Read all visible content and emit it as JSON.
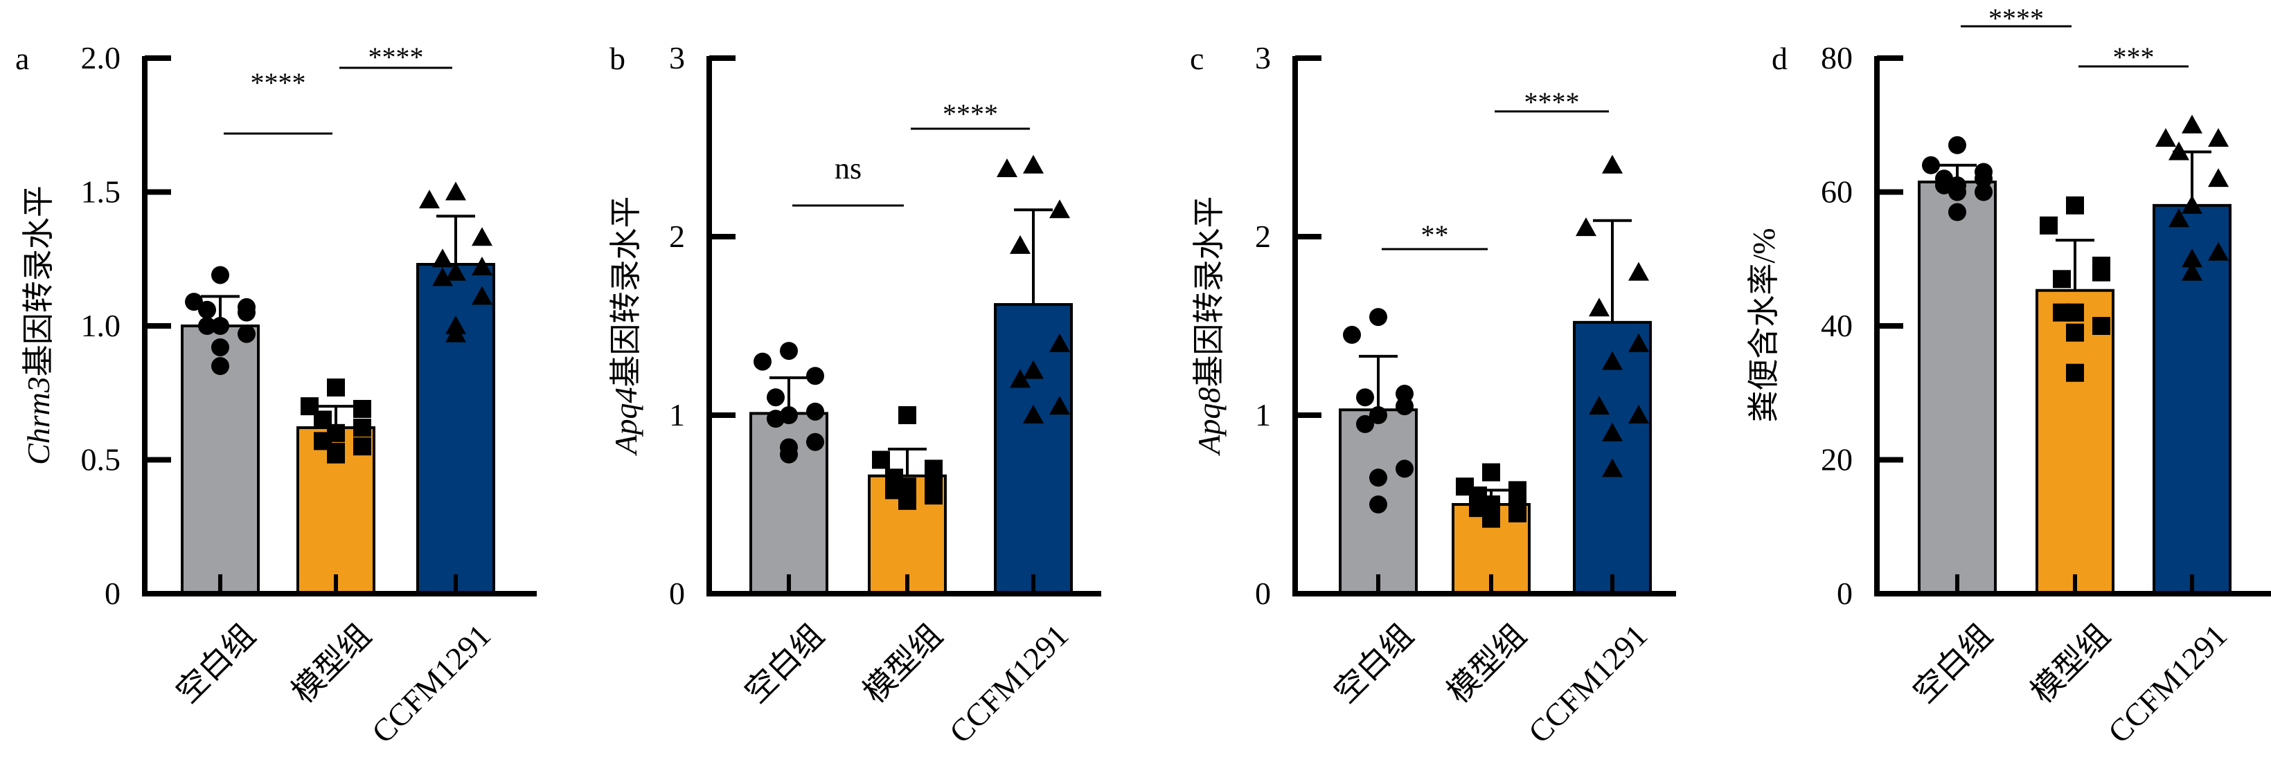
{
  "colors": {
    "空白组": "#a0a1a5",
    "模型组": "#f29c1c",
    "CCFM1291": "#003a78",
    "axis": "#000000"
  },
  "chart_data": [
    {
      "type": "bar",
      "panel_label": "a",
      "ylabel_italic": "Chrm3",
      "ylabel_rest": "基因转录水平",
      "ylim": [
        0,
        2.0
      ],
      "yticks": [
        "0",
        "0.5",
        "1.0",
        "1.5",
        "2.0"
      ],
      "ytick_values": [
        0,
        0.5,
        1.0,
        1.5,
        2.0
      ],
      "categories": [
        "空白组",
        "模型组",
        "CCFM1291"
      ],
      "values": [
        1.0,
        0.62,
        1.23
      ],
      "sd": [
        0.11,
        0.08,
        0.18
      ],
      "markers": [
        "circle",
        "square",
        "triangle"
      ],
      "points": [
        [
          1.19,
          1.09,
          1.07,
          1.06,
          1.05,
          1.0,
          1.0,
          0.97,
          0.92,
          0.85
        ],
        [
          0.77,
          0.7,
          0.69,
          0.65,
          0.62,
          0.6,
          0.57,
          0.55,
          0.53,
          0.52
        ],
        [
          1.5,
          1.47,
          1.33,
          1.25,
          1.22,
          1.2,
          1.18,
          1.11,
          1.0,
          0.97
        ]
      ],
      "significance": [
        {
          "from": 0,
          "to": 1,
          "label": "****"
        },
        {
          "from": 1,
          "to": 2,
          "label": "****"
        }
      ],
      "grid": false
    },
    {
      "type": "bar",
      "panel_label": "b",
      "ylabel_italic": "Apq4",
      "ylabel_rest": "基因转录水平",
      "ylim": [
        0,
        3
      ],
      "yticks": [
        "0",
        "1",
        "2",
        "3"
      ],
      "ytick_values": [
        0,
        1,
        2,
        3
      ],
      "categories": [
        "空白组",
        "模型组",
        "CCFM1291"
      ],
      "values": [
        1.01,
        0.66,
        1.62
      ],
      "sd": [
        0.2,
        0.15,
        0.53
      ],
      "markers": [
        "circle",
        "square",
        "triangle"
      ],
      "points": [
        [
          1.36,
          1.3,
          1.22,
          1.1,
          1.02,
          1.0,
          0.98,
          0.85,
          0.82,
          0.78
        ],
        [
          1.0,
          0.75,
          0.7,
          0.65,
          0.62,
          0.6,
          0.58,
          0.55,
          0.53,
          0.52
        ],
        [
          2.4,
          2.38,
          2.15,
          1.95,
          1.4,
          1.25,
          1.2,
          1.05,
          1.0,
          1.0
        ]
      ],
      "significance": [
        {
          "from": 0,
          "to": 1,
          "label": "ns"
        },
        {
          "from": 1,
          "to": 2,
          "label": "****"
        }
      ],
      "grid": false
    },
    {
      "type": "bar",
      "panel_label": "c",
      "ylabel_italic": "Apq8",
      "ylabel_rest": "基因转录水平",
      "ylim": [
        0,
        3
      ],
      "yticks": [
        "0",
        "1",
        "2",
        "3"
      ],
      "ytick_values": [
        0,
        1,
        2,
        3
      ],
      "categories": [
        "空白组",
        "模型组",
        "CCFM1291"
      ],
      "values": [
        1.03,
        0.5,
        1.52
      ],
      "sd": [
        0.3,
        0.08,
        0.57
      ],
      "markers": [
        "circle",
        "square",
        "triangle"
      ],
      "points": [
        [
          1.55,
          1.45,
          1.12,
          1.1,
          1.05,
          1.0,
          0.95,
          0.7,
          0.65,
          0.5
        ],
        [
          0.68,
          0.6,
          0.58,
          0.55,
          0.52,
          0.5,
          0.48,
          0.45,
          0.43,
          0.42
        ],
        [
          2.4,
          2.05,
          1.8,
          1.6,
          1.4,
          1.3,
          1.05,
          1.0,
          0.9,
          0.7
        ]
      ],
      "significance": [
        {
          "from": 0,
          "to": 1,
          "label": "**"
        },
        {
          "from": 1,
          "to": 2,
          "label": "****"
        }
      ],
      "grid": false
    },
    {
      "type": "bar",
      "panel_label": "d",
      "ylabel_italic": "",
      "ylabel_rest": "粪便含水率/%",
      "ylim": [
        0,
        80
      ],
      "yticks": [
        "0",
        "20",
        "40",
        "60",
        "80"
      ],
      "ytick_values": [
        0,
        20,
        40,
        60,
        80
      ],
      "categories": [
        "空白组",
        "模型组",
        "CCFM1291"
      ],
      "values": [
        61.5,
        45.3,
        58.0
      ],
      "sd": [
        2.5,
        7.5,
        8.0
      ],
      "markers": [
        "circle",
        "square",
        "triangle"
      ],
      "points": [
        [
          67,
          64,
          63,
          62,
          62,
          61,
          61,
          60,
          60,
          57
        ],
        [
          58,
          55,
          49,
          47,
          48,
          42,
          42,
          40,
          39,
          33
        ],
        [
          70,
          68,
          68,
          66,
          62,
          58,
          56,
          51,
          50,
          48
        ]
      ],
      "significance": [
        {
          "from": 0,
          "to": 1,
          "label": "****"
        },
        {
          "from": 1,
          "to": 2,
          "label": "***"
        }
      ],
      "grid": false
    }
  ]
}
